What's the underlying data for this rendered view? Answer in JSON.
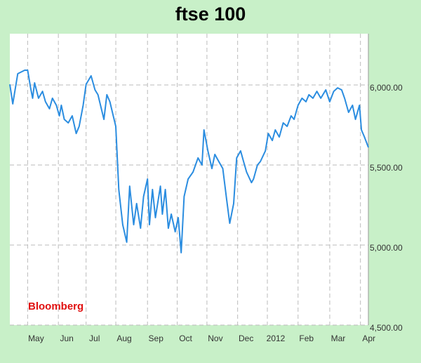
{
  "chart_data": {
    "type": "line",
    "title": "ftse 100",
    "annotation": "Bloomberg",
    "x": [
      0,
      3,
      8,
      15,
      18,
      21,
      23,
      25,
      29,
      33,
      36,
      40,
      43,
      47,
      50,
      52,
      55,
      59,
      63,
      67,
      70,
      74,
      77,
      82,
      86,
      89,
      95,
      98,
      101,
      107,
      110,
      114,
      118,
      121,
      125,
      128,
      132,
      135,
      139,
      141,
      144,
      147,
      152,
      154,
      157,
      160,
      163,
      167,
      170,
      173,
      176,
      180,
      185,
      190,
      194,
      196,
      200,
      204,
      207,
      211,
      215,
      219,
      222,
      226,
      229,
      233,
      236,
      239,
      244,
      246,
      250,
      253,
      258,
      261,
      265,
      268,
      272,
      276,
      280,
      284,
      287,
      291,
      295,
      299,
      302,
      306,
      310,
      314,
      319,
      323,
      327,
      331,
      335,
      338,
      342,
      346,
      349,
      353,
      355,
      358,
      362
    ],
    "series": [
      {
        "color": "#2b8de0",
        "values": [
          6004,
          5882,
          6070,
          6092,
          6092,
          5982,
          5917,
          6013,
          5917,
          5960,
          5895,
          5851,
          5917,
          5873,
          5807,
          5873,
          5785,
          5763,
          5807,
          5697,
          5741,
          5873,
          6004,
          6057,
          5969,
          5939,
          5785,
          5939,
          5895,
          5741,
          5347,
          5127,
          5018,
          5368,
          5127,
          5259,
          5105,
          5303,
          5412,
          5127,
          5347,
          5171,
          5368,
          5193,
          5347,
          5105,
          5193,
          5083,
          5171,
          4952,
          5303,
          5412,
          5456,
          5544,
          5500,
          5719,
          5588,
          5478,
          5566,
          5522,
          5478,
          5281,
          5136,
          5259,
          5544,
          5588,
          5522,
          5456,
          5390,
          5412,
          5500,
          5522,
          5588,
          5697,
          5653,
          5719,
          5675,
          5763,
          5741,
          5807,
          5785,
          5873,
          5917,
          5895,
          5939,
          5917,
          5960,
          5917,
          5969,
          5895,
          5960,
          5982,
          5969,
          5917,
          5829,
          5873,
          5785,
          5873,
          5719,
          5675,
          5610
        ]
      }
    ],
    "xlim": [
      0,
      362
    ],
    "xticks": [
      {
        "value": 18,
        "label": "May"
      },
      {
        "value": 49,
        "label": "Jun"
      },
      {
        "value": 77,
        "label": "Jul"
      },
      {
        "value": 107,
        "label": "Aug"
      },
      {
        "value": 139,
        "label": "Sep"
      },
      {
        "value": 169,
        "label": "Oct"
      },
      {
        "value": 199,
        "label": "Nov"
      },
      {
        "value": 230,
        "label": "Dec"
      },
      {
        "value": 260,
        "label": "2012"
      },
      {
        "value": 291,
        "label": "Feb"
      },
      {
        "value": 323,
        "label": "Mar"
      },
      {
        "value": 354,
        "label": "Apr"
      }
    ],
    "ylim": [
      4500,
      6320
    ],
    "yticks": [
      {
        "value": 4500,
        "label": "4,500.00"
      },
      {
        "value": 5000,
        "label": "5,000.00"
      },
      {
        "value": 5500,
        "label": "5,500.00"
      },
      {
        "value": 6000,
        "label": "6,000.00"
      }
    ],
    "grid": true
  }
}
